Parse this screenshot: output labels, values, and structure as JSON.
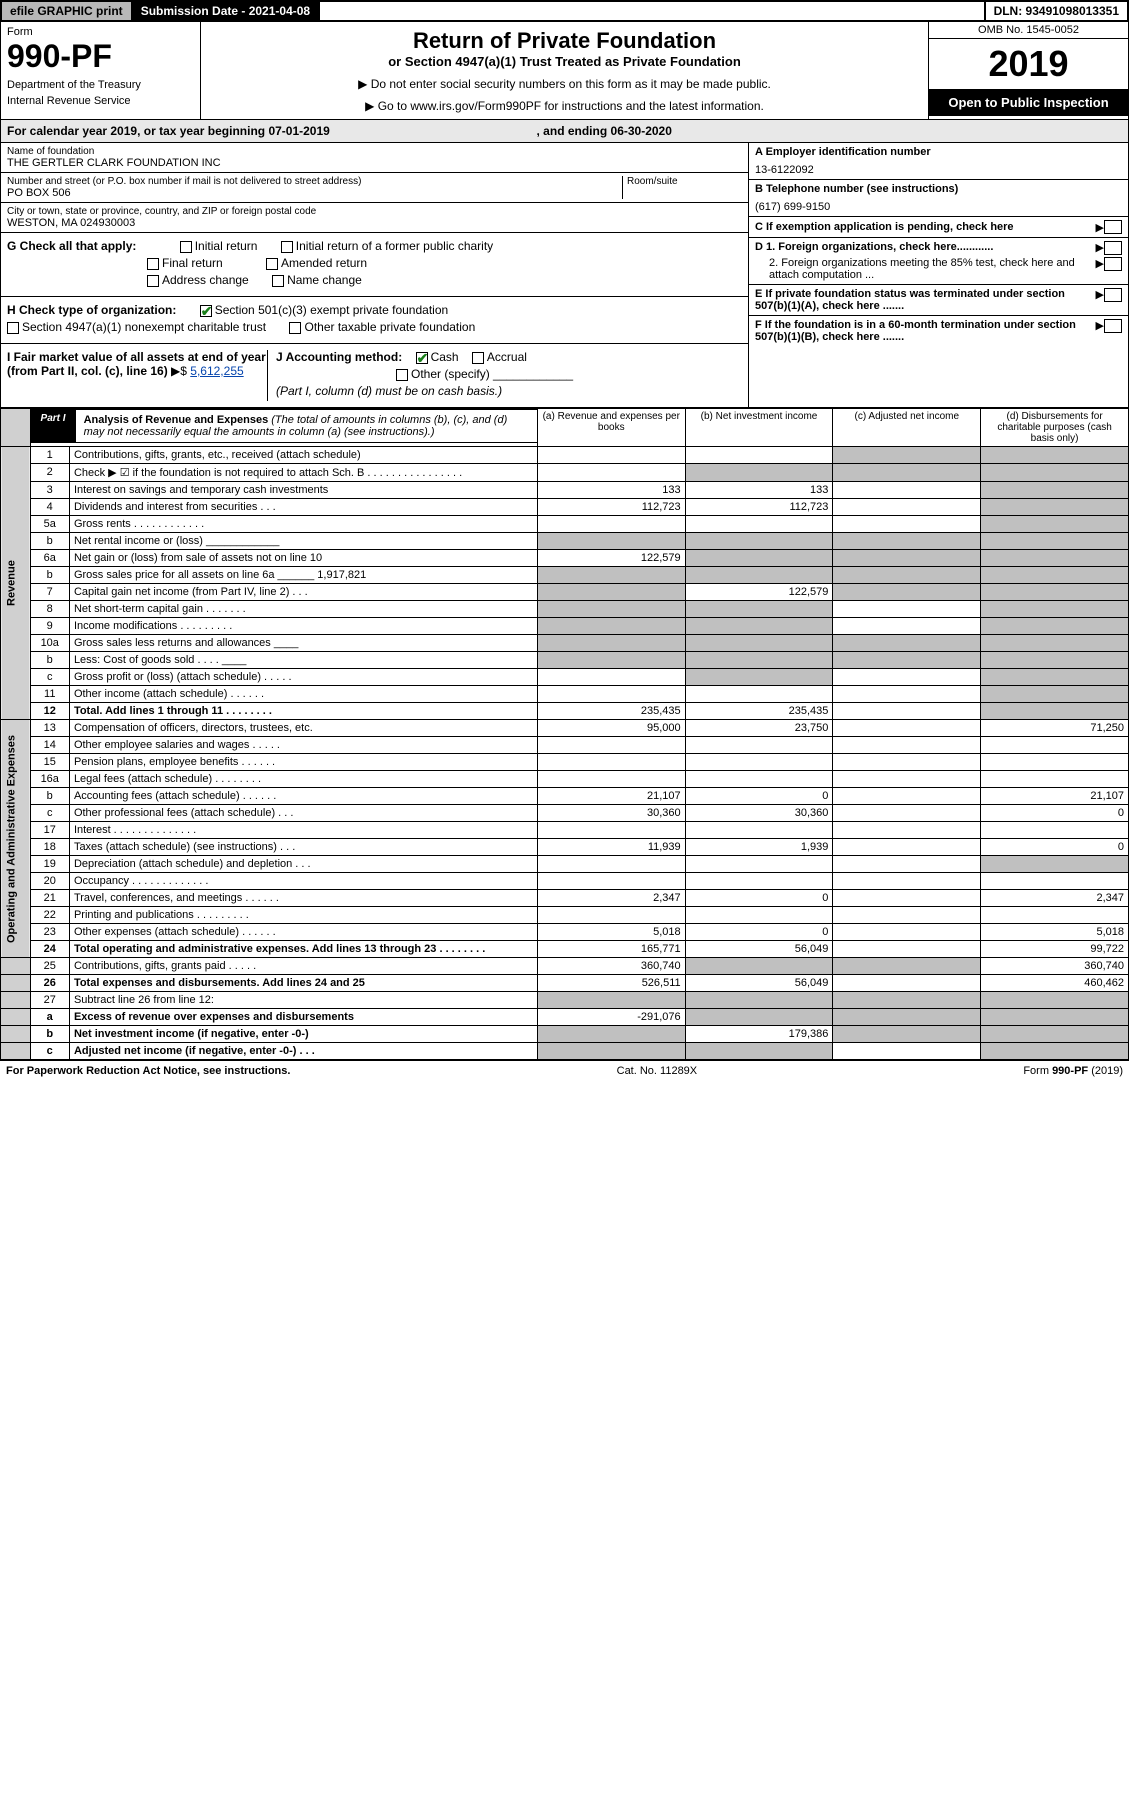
{
  "topbar": {
    "efile": "efile GRAPHIC print",
    "submission": "Submission Date - 2021-04-08",
    "dln": "DLN: 93491098013351"
  },
  "header": {
    "form_label": "Form",
    "form_number": "990-PF",
    "dept": "Department of the Treasury",
    "irs": "Internal Revenue Service",
    "title": "Return of Private Foundation",
    "subtitle": "or Section 4947(a)(1) Trust Treated as Private Foundation",
    "warn": "▶ Do not enter social security numbers on this form as it may be made public.",
    "goto": "▶ Go to www.irs.gov/Form990PF for instructions and the latest information.",
    "omb": "OMB No. 1545-0052",
    "year": "2019",
    "open": "Open to Public Inspection"
  },
  "cal": {
    "text_a": "For calendar year 2019, or tax year beginning 07-01-2019",
    "text_b": ", and ending 06-30-2020"
  },
  "org": {
    "name_label": "Name of foundation",
    "name": "THE GERTLER CLARK FOUNDATION INC",
    "addr_label": "Number and street (or P.O. box number if mail is not delivered to street address)",
    "addr": "PO BOX 506",
    "room_label": "Room/suite",
    "city_label": "City or town, state or province, country, and ZIP or foreign postal code",
    "city": "WESTON, MA  024930003",
    "ein_label": "A Employer identification number",
    "ein": "13-6122092",
    "phone_label": "B Telephone number (see instructions)",
    "phone": "(617) 699-9150",
    "c_label": "C If exemption application is pending, check here",
    "d1_label": "D 1. Foreign organizations, check here............",
    "d2_label": "2. Foreign organizations meeting the 85% test, check here and attach computation ...",
    "e_label": "E If private foundation status was terminated under section 507(b)(1)(A), check here .......",
    "f_label": "F If the foundation is in a 60-month termination under section 507(b)(1)(B), check here .......",
    "g_label": "G Check all that apply:",
    "g_opts": [
      "Initial return",
      "Initial return of a former public charity",
      "Final return",
      "Amended return",
      "Address change",
      "Name change"
    ],
    "h_label": "H Check type of organization:",
    "h_opt1": "Section 501(c)(3) exempt private foundation",
    "h_opt2": "Section 4947(a)(1) nonexempt charitable trust",
    "h_opt3": "Other taxable private foundation",
    "i_label": "I Fair market value of all assets at end of year (from Part II, col. (c), line 16)",
    "i_val": "5,612,255",
    "j_label": "J Accounting method:",
    "j_cash": "Cash",
    "j_accrual": "Accrual",
    "j_other": "Other (specify)",
    "j_note": "(Part I, column (d) must be on cash basis.)"
  },
  "part1": {
    "tab": "Part I",
    "title": "Analysis of Revenue and Expenses",
    "note": "(The total of amounts in columns (b), (c), and (d) may not necessarily equal the amounts in column (a) (see instructions).)",
    "col_a": "(a) Revenue and expenses per books",
    "col_b": "(b) Net investment income",
    "col_c": "(c) Adjusted net income",
    "col_d": "(d) Disbursements for charitable purposes (cash basis only)"
  },
  "side": {
    "revenue": "Revenue",
    "expenses": "Operating and Administrative Expenses"
  },
  "rows": [
    {
      "n": "1",
      "d": "Contributions, gifts, grants, etc., received (attach schedule)",
      "a": "",
      "b": "",
      "c": "g",
      "dd": "g"
    },
    {
      "n": "2",
      "d": "Check ▶ ☑ if the foundation is not required to attach Sch. B  .  .  .  .  .  .  .  .  .  .  .  .  .  .  .  .",
      "a": "",
      "b": "g",
      "c": "g",
      "dd": "g"
    },
    {
      "n": "3",
      "d": "Interest on savings and temporary cash investments",
      "a": "133",
      "b": "133",
      "c": "",
      "dd": "g"
    },
    {
      "n": "4",
      "d": "Dividends and interest from securities  .  .  .",
      "a": "112,723",
      "b": "112,723",
      "c": "",
      "dd": "g"
    },
    {
      "n": "5a",
      "d": "Gross rents  .  .  .  .  .  .  .  .  .  .  .  .",
      "a": "",
      "b": "",
      "c": "",
      "dd": "g"
    },
    {
      "n": "b",
      "d": "Net rental income or (loss)  ____________",
      "a": "g",
      "b": "g",
      "c": "g",
      "dd": "g"
    },
    {
      "n": "6a",
      "d": "Net gain or (loss) from sale of assets not on line 10",
      "a": "122,579",
      "b": "g",
      "c": "g",
      "dd": "g"
    },
    {
      "n": "b",
      "d": "Gross sales price for all assets on line 6a ______ 1,917,821",
      "a": "g",
      "b": "g",
      "c": "g",
      "dd": "g"
    },
    {
      "n": "7",
      "d": "Capital gain net income (from Part IV, line 2)  .  .  .",
      "a": "g",
      "b": "122,579",
      "c": "g",
      "dd": "g"
    },
    {
      "n": "8",
      "d": "Net short-term capital gain  .  .  .  .  .  .  .",
      "a": "g",
      "b": "g",
      "c": "",
      "dd": "g"
    },
    {
      "n": "9",
      "d": "Income modifications  .  .  .  .  .  .  .  .  .",
      "a": "g",
      "b": "g",
      "c": "",
      "dd": "g"
    },
    {
      "n": "10a",
      "d": "Gross sales less returns and allowances  ____",
      "a": "g",
      "b": "g",
      "c": "g",
      "dd": "g"
    },
    {
      "n": "b",
      "d": "Less: Cost of goods sold  .  .  .  .  ____",
      "a": "g",
      "b": "g",
      "c": "g",
      "dd": "g"
    },
    {
      "n": "c",
      "d": "Gross profit or (loss) (attach schedule)  .  .  .  .  .",
      "a": "",
      "b": "g",
      "c": "",
      "dd": "g"
    },
    {
      "n": "11",
      "d": "Other income (attach schedule)  .  .  .  .  .  .",
      "a": "",
      "b": "",
      "c": "",
      "dd": "g"
    },
    {
      "n": "12",
      "d": "Total. Add lines 1 through 11  .  .  .  .  .  .  .  .",
      "a": "235,435",
      "b": "235,435",
      "c": "",
      "dd": "g",
      "bold": true
    },
    {
      "n": "13",
      "d": "Compensation of officers, directors, trustees, etc.",
      "a": "95,000",
      "b": "23,750",
      "c": "",
      "dd": "71,250"
    },
    {
      "n": "14",
      "d": "Other employee salaries and wages  .  .  .  .  .",
      "a": "",
      "b": "",
      "c": "",
      "dd": ""
    },
    {
      "n": "15",
      "d": "Pension plans, employee benefits  .  .  .  .  .  .",
      "a": "",
      "b": "",
      "c": "",
      "dd": ""
    },
    {
      "n": "16a",
      "d": "Legal fees (attach schedule)  .  .  .  .  .  .  .  .",
      "a": "",
      "b": "",
      "c": "",
      "dd": ""
    },
    {
      "n": "b",
      "d": "Accounting fees (attach schedule)  .  .  .  .  .  .",
      "a": "21,107",
      "b": "0",
      "c": "",
      "dd": "21,107"
    },
    {
      "n": "c",
      "d": "Other professional fees (attach schedule)  .  .  .",
      "a": "30,360",
      "b": "30,360",
      "c": "",
      "dd": "0"
    },
    {
      "n": "17",
      "d": "Interest  .  .  .  .  .  .  .  .  .  .  .  .  .  .",
      "a": "",
      "b": "",
      "c": "",
      "dd": ""
    },
    {
      "n": "18",
      "d": "Taxes (attach schedule) (see instructions)  .  .  .",
      "a": "11,939",
      "b": "1,939",
      "c": "",
      "dd": "0"
    },
    {
      "n": "19",
      "d": "Depreciation (attach schedule) and depletion  .  .  .",
      "a": "",
      "b": "",
      "c": "",
      "dd": "g"
    },
    {
      "n": "20",
      "d": "Occupancy  .  .  .  .  .  .  .  .  .  .  .  .  .",
      "a": "",
      "b": "",
      "c": "",
      "dd": ""
    },
    {
      "n": "21",
      "d": "Travel, conferences, and meetings  .  .  .  .  .  .",
      "a": "2,347",
      "b": "0",
      "c": "",
      "dd": "2,347"
    },
    {
      "n": "22",
      "d": "Printing and publications  .  .  .  .  .  .  .  .  .",
      "a": "",
      "b": "",
      "c": "",
      "dd": ""
    },
    {
      "n": "23",
      "d": "Other expenses (attach schedule)  .  .  .  .  .  .",
      "a": "5,018",
      "b": "0",
      "c": "",
      "dd": "5,018"
    },
    {
      "n": "24",
      "d": "Total operating and administrative expenses. Add lines 13 through 23  .  .  .  .  .  .  .  .",
      "a": "165,771",
      "b": "56,049",
      "c": "",
      "dd": "99,722",
      "bold": true
    },
    {
      "n": "25",
      "d": "Contributions, gifts, grants paid  .  .  .  .  .",
      "a": "360,740",
      "b": "g",
      "c": "g",
      "dd": "360,740"
    },
    {
      "n": "26",
      "d": "Total expenses and disbursements. Add lines 24 and 25",
      "a": "526,511",
      "b": "56,049",
      "c": "",
      "dd": "460,462",
      "bold": true
    },
    {
      "n": "27",
      "d": "Subtract line 26 from line 12:",
      "a": "g",
      "b": "g",
      "c": "g",
      "dd": "g"
    },
    {
      "n": "a",
      "d": "Excess of revenue over expenses and disbursements",
      "a": "-291,076",
      "b": "g",
      "c": "g",
      "dd": "g",
      "bold": true
    },
    {
      "n": "b",
      "d": "Net investment income (if negative, enter -0-)",
      "a": "g",
      "b": "179,386",
      "c": "g",
      "dd": "g",
      "bold": true
    },
    {
      "n": "c",
      "d": "Adjusted net income (if negative, enter -0-)  .  .  .",
      "a": "g",
      "b": "g",
      "c": "",
      "dd": "g",
      "bold": true
    }
  ],
  "footer": {
    "left": "For Paperwork Reduction Act Notice, see instructions.",
    "mid": "Cat. No. 11289X",
    "right": "Form 990-PF (2019)"
  }
}
